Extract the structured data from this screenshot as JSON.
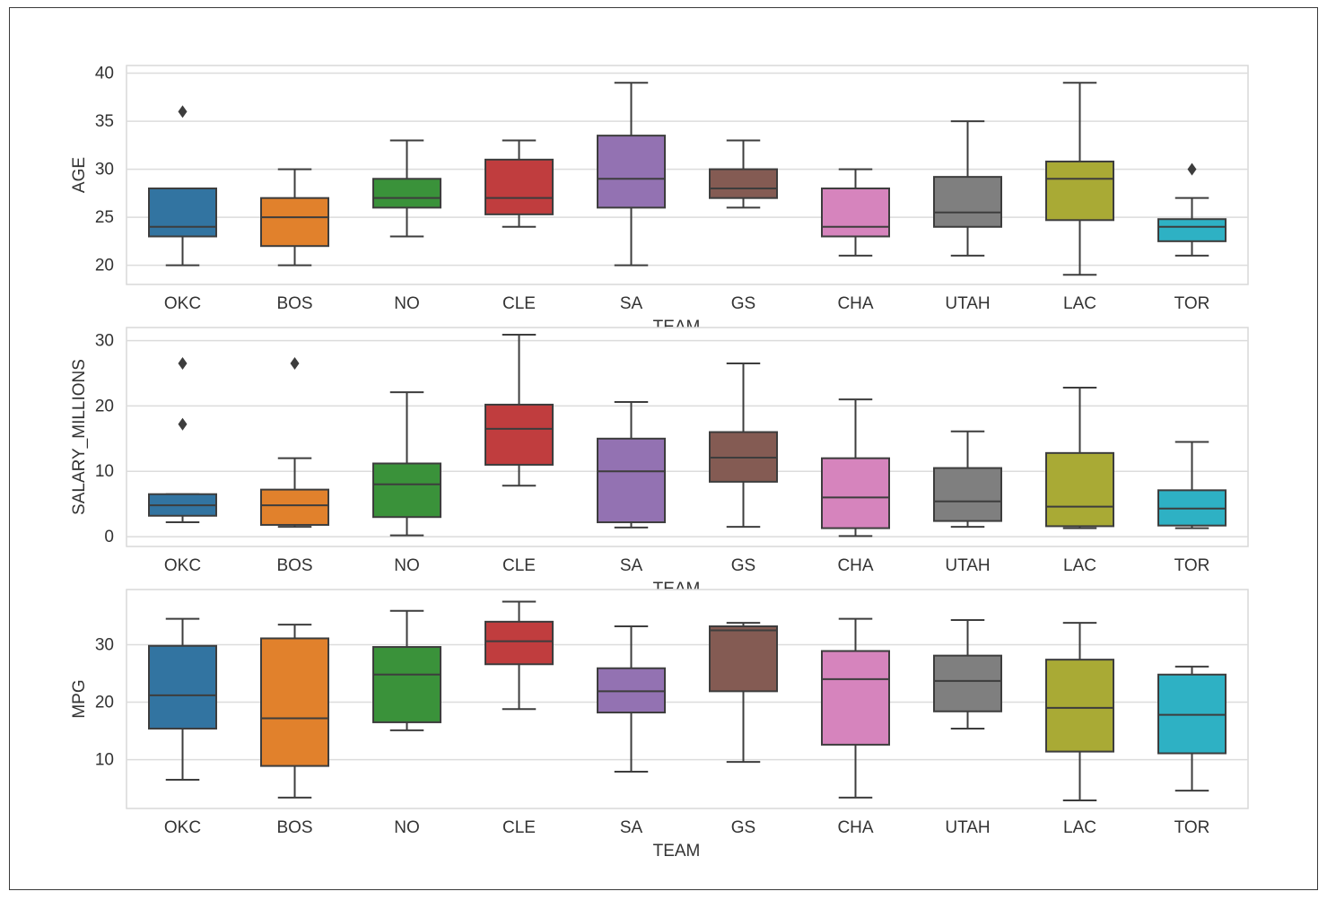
{
  "chart_data": [
    {
      "type": "box",
      "xlabel": "TEAM",
      "ylabel": "AGE",
      "ylim": [
        18,
        40.8
      ],
      "yticks": [
        20,
        25,
        30,
        35,
        40
      ],
      "grid": true,
      "categories": [
        "OKC",
        "BOS",
        "NO",
        "CLE",
        "SA",
        "GS",
        "CHA",
        "UTAH",
        "LAC",
        "TOR"
      ],
      "colors": [
        "#3274a1",
        "#e1812c",
        "#3a923a",
        "#c03d3e",
        "#9372b2",
        "#845b53",
        "#d684bd",
        "#7f7f7f",
        "#a9aa35",
        "#2eb1c4"
      ],
      "boxes": [
        {
          "whisker_low": 20,
          "q1": 23,
          "median": 24,
          "q3": 28,
          "whisker_high": 28,
          "outliers": [
            36
          ]
        },
        {
          "whisker_low": 20,
          "q1": 22,
          "median": 25,
          "q3": 27,
          "whisker_high": 30,
          "outliers": []
        },
        {
          "whisker_low": 23,
          "q1": 26,
          "median": 27,
          "q3": 29,
          "whisker_high": 33,
          "outliers": []
        },
        {
          "whisker_low": 24,
          "q1": 25.3,
          "median": 27,
          "q3": 31,
          "whisker_high": 33,
          "outliers": []
        },
        {
          "whisker_low": 20,
          "q1": 26,
          "median": 29,
          "q3": 33.5,
          "whisker_high": 39,
          "outliers": []
        },
        {
          "whisker_low": 26,
          "q1": 27,
          "median": 28,
          "q3": 30,
          "whisker_high": 33,
          "outliers": []
        },
        {
          "whisker_low": 21,
          "q1": 23,
          "median": 24,
          "q3": 28,
          "whisker_high": 30,
          "outliers": []
        },
        {
          "whisker_low": 21,
          "q1": 24,
          "median": 25.5,
          "q3": 29.2,
          "whisker_high": 35,
          "outliers": []
        },
        {
          "whisker_low": 19,
          "q1": 24.7,
          "median": 29,
          "q3": 30.8,
          "whisker_high": 39,
          "outliers": []
        },
        {
          "whisker_low": 21,
          "q1": 22.5,
          "median": 24,
          "q3": 24.8,
          "whisker_high": 27,
          "outliers": [
            30
          ]
        }
      ]
    },
    {
      "type": "box",
      "xlabel": "TEAM",
      "ylabel": "SALARY_MILLIONS",
      "ylim": [
        -1.5,
        32
      ],
      "yticks": [
        0,
        10,
        20,
        30
      ],
      "grid": true,
      "categories": [
        "OKC",
        "BOS",
        "NO",
        "CLE",
        "SA",
        "GS",
        "CHA",
        "UTAH",
        "LAC",
        "TOR"
      ],
      "colors": [
        "#3274a1",
        "#e1812c",
        "#3a923a",
        "#c03d3e",
        "#9372b2",
        "#845b53",
        "#d684bd",
        "#7f7f7f",
        "#a9aa35",
        "#2eb1c4"
      ],
      "boxes": [
        {
          "whisker_low": 2.2,
          "q1": 3.2,
          "median": 4.8,
          "q3": 6.5,
          "whisker_high": 6.5,
          "outliers": [
            17.2,
            26.5
          ]
        },
        {
          "whisker_low": 1.5,
          "q1": 1.8,
          "median": 4.8,
          "q3": 7.2,
          "whisker_high": 12,
          "outliers": [
            26.5
          ]
        },
        {
          "whisker_low": 0.2,
          "q1": 3.0,
          "median": 8.0,
          "q3": 11.2,
          "whisker_high": 22.1,
          "outliers": []
        },
        {
          "whisker_low": 7.8,
          "q1": 11.0,
          "median": 16.5,
          "q3": 20.2,
          "whisker_high": 30.9,
          "outliers": []
        },
        {
          "whisker_low": 1.4,
          "q1": 2.2,
          "median": 10.0,
          "q3": 15.0,
          "whisker_high": 20.6,
          "outliers": []
        },
        {
          "whisker_low": 1.5,
          "q1": 8.4,
          "median": 12.1,
          "q3": 16.0,
          "whisker_high": 26.5,
          "outliers": []
        },
        {
          "whisker_low": 0.1,
          "q1": 1.3,
          "median": 6.0,
          "q3": 12.0,
          "whisker_high": 21.0,
          "outliers": []
        },
        {
          "whisker_low": 1.5,
          "q1": 2.4,
          "median": 5.4,
          "q3": 10.5,
          "whisker_high": 16.1,
          "outliers": []
        },
        {
          "whisker_low": 1.3,
          "q1": 1.6,
          "median": 4.6,
          "q3": 12.8,
          "whisker_high": 22.8,
          "outliers": []
        },
        {
          "whisker_low": 1.3,
          "q1": 1.7,
          "median": 4.3,
          "q3": 7.1,
          "whisker_high": 14.5,
          "outliers": []
        }
      ]
    },
    {
      "type": "box",
      "xlabel": "TEAM",
      "ylabel": "MPG",
      "ylim": [
        1.5,
        39.6
      ],
      "yticks": [
        10,
        20,
        30
      ],
      "grid": true,
      "categories": [
        "OKC",
        "BOS",
        "NO",
        "CLE",
        "SA",
        "GS",
        "CHA",
        "UTAH",
        "LAC",
        "TOR"
      ],
      "colors": [
        "#3274a1",
        "#e1812c",
        "#3a923a",
        "#c03d3e",
        "#9372b2",
        "#845b53",
        "#d684bd",
        "#7f7f7f",
        "#a9aa35",
        "#2eb1c4"
      ],
      "boxes": [
        {
          "whisker_low": 6.5,
          "q1": 15.4,
          "median": 21.2,
          "q3": 29.8,
          "whisker_high": 34.5,
          "outliers": []
        },
        {
          "whisker_low": 3.4,
          "q1": 8.9,
          "median": 17.2,
          "q3": 31.1,
          "whisker_high": 33.5,
          "outliers": []
        },
        {
          "whisker_low": 15.1,
          "q1": 16.5,
          "median": 24.8,
          "q3": 29.6,
          "whisker_high": 35.9,
          "outliers": []
        },
        {
          "whisker_low": 18.8,
          "q1": 26.6,
          "median": 30.6,
          "q3": 34.0,
          "whisker_high": 37.5,
          "outliers": []
        },
        {
          "whisker_low": 7.9,
          "q1": 18.2,
          "median": 21.9,
          "q3": 25.9,
          "whisker_high": 33.2,
          "outliers": []
        },
        {
          "whisker_low": 9.6,
          "q1": 21.9,
          "median": 32.5,
          "q3": 33.2,
          "whisker_high": 33.8,
          "outliers": []
        },
        {
          "whisker_low": 3.4,
          "q1": 12.6,
          "median": 24.0,
          "q3": 28.9,
          "whisker_high": 34.5,
          "outliers": []
        },
        {
          "whisker_low": 15.4,
          "q1": 18.4,
          "median": 23.7,
          "q3": 28.1,
          "whisker_high": 34.3,
          "outliers": []
        },
        {
          "whisker_low": 2.9,
          "q1": 11.4,
          "median": 19.0,
          "q3": 27.4,
          "whisker_high": 33.8,
          "outliers": []
        },
        {
          "whisker_low": 4.6,
          "q1": 11.1,
          "median": 17.8,
          "q3": 24.8,
          "whisker_high": 26.2,
          "outliers": []
        }
      ]
    }
  ]
}
